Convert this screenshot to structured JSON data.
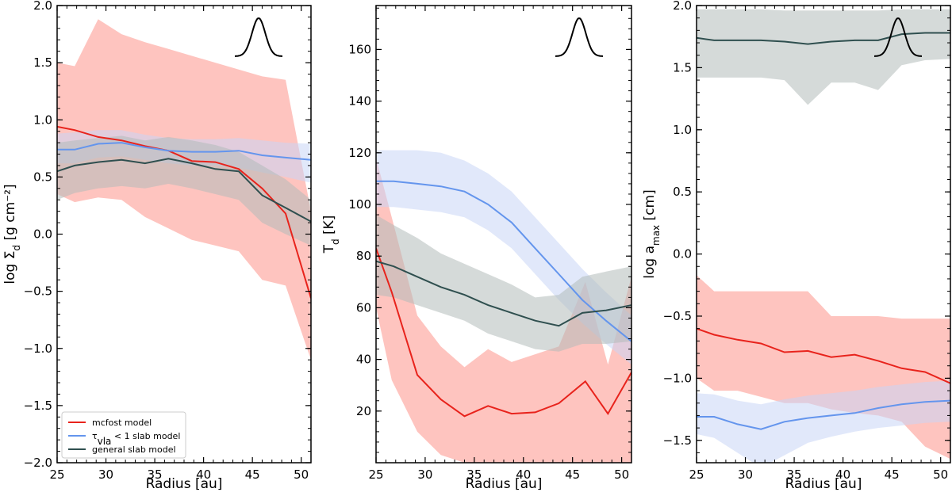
{
  "colors": {
    "mcfost": "#e8231c",
    "slab_thin": "#6495ed",
    "slab_general": "#2f4f4f",
    "mcfost_band": "#fdb0aa",
    "slab_thin_band": "#c8d6f5",
    "slab_general_band": "#b3bcba"
  },
  "legend": {
    "entries": [
      {
        "series": "mcfost",
        "label": "mcfost model"
      },
      {
        "series": "slab_thin",
        "label": "τ_vla < 1 slab model"
      },
      {
        "series": "slab_general",
        "label": "general slab model"
      }
    ],
    "placement": "lower-left of first panel"
  },
  "chart_data": [
    {
      "type": "line",
      "xlabel": "Radius [au]",
      "ylabel": "log Σ_d [g cm⁻²]",
      "xlim": [
        25,
        51
      ],
      "ylim": [
        -2.0,
        2.0
      ],
      "xticks": [
        25,
        30,
        35,
        40,
        45,
        50
      ],
      "yticks": [
        -2.0,
        -1.5,
        -1.0,
        -0.5,
        0.0,
        0.5,
        1.0,
        1.5,
        2.0
      ],
      "tick_labels_x": [
        "25",
        "30",
        "35",
        "40",
        "45",
        "50"
      ],
      "tick_labels_y": [
        "−2.0",
        "−1.5",
        "−1.0",
        "−0.5",
        "0.0",
        "0.5",
        "1.0",
        "1.5",
        "2.0"
      ],
      "inset": "gaussian beam profile, top-right",
      "series": [
        {
          "key": "mcfost",
          "x": [
            25,
            26.8,
            29.2,
            31.6,
            34,
            36.4,
            38.8,
            41.2,
            43.6,
            46,
            48.4,
            51
          ],
          "y": [
            0.94,
            0.91,
            0.85,
            0.82,
            0.77,
            0.73,
            0.64,
            0.63,
            0.57,
            0.4,
            0.18,
            -0.56
          ],
          "lower": [
            0.35,
            0.28,
            0.32,
            0.3,
            0.15,
            0.05,
            -0.05,
            -0.1,
            -0.15,
            -0.4,
            -0.45,
            -1.1
          ],
          "upper": [
            1.5,
            1.47,
            1.88,
            1.75,
            1.68,
            1.62,
            1.56,
            1.5,
            1.44,
            1.38,
            1.35,
            0.2
          ]
        },
        {
          "key": "slab_thin",
          "x": [
            25,
            26.8,
            29.2,
            31.6,
            34,
            36.4,
            38.8,
            41.2,
            43.6,
            46,
            48.4,
            51
          ],
          "y": [
            0.74,
            0.74,
            0.79,
            0.8,
            0.76,
            0.73,
            0.72,
            0.72,
            0.73,
            0.69,
            0.67,
            0.65
          ],
          "lower": [
            0.62,
            0.62,
            0.67,
            0.68,
            0.65,
            0.62,
            0.6,
            0.6,
            0.58,
            0.54,
            0.5,
            0.45
          ],
          "upper": [
            0.88,
            0.89,
            0.91,
            0.91,
            0.87,
            0.84,
            0.83,
            0.83,
            0.84,
            0.82,
            0.8,
            0.79
          ]
        },
        {
          "key": "slab_general",
          "x": [
            25,
            26.8,
            29.2,
            31.6,
            34,
            36.4,
            38.8,
            41.2,
            43.6,
            46,
            48.4,
            51
          ],
          "y": [
            0.55,
            0.6,
            0.63,
            0.65,
            0.62,
            0.66,
            0.62,
            0.57,
            0.55,
            0.34,
            0.23,
            0.11
          ],
          "lower": [
            0.3,
            0.36,
            0.4,
            0.42,
            0.4,
            0.44,
            0.4,
            0.35,
            0.3,
            0.1,
            0.0,
            -0.1
          ],
          "upper": [
            0.8,
            0.82,
            0.84,
            0.86,
            0.82,
            0.85,
            0.82,
            0.78,
            0.72,
            0.6,
            0.48,
            0.3
          ]
        }
      ]
    },
    {
      "type": "line",
      "xlabel": "Radius [au]",
      "ylabel": "T_d [K]",
      "xlim": [
        25,
        51
      ],
      "ylim": [
        0,
        177
      ],
      "xticks": [
        25,
        30,
        35,
        40,
        45,
        50
      ],
      "yticks": [
        20,
        40,
        60,
        80,
        100,
        120,
        140,
        160
      ],
      "tick_labels_x": [
        "25",
        "30",
        "35",
        "40",
        "45",
        "50"
      ],
      "tick_labels_y": [
        "20",
        "40",
        "60",
        "80",
        "100",
        "120",
        "140",
        "160"
      ],
      "inset": "gaussian beam profile, top-right",
      "series": [
        {
          "key": "mcfost",
          "x": [
            25,
            26.6,
            29.2,
            31.6,
            34,
            36.4,
            38.8,
            41.2,
            43.6,
            46.3,
            48.6,
            51
          ],
          "y": [
            83,
            66,
            34,
            24.5,
            18,
            22,
            19,
            19.5,
            23,
            31.5,
            19,
            35
          ],
          "lower": [
            60,
            32,
            12,
            3,
            0,
            0,
            0,
            0,
            0,
            0,
            0,
            0
          ],
          "upper": [
            118,
            95,
            57,
            45,
            37,
            44,
            39,
            42,
            45,
            70,
            38,
            72
          ]
        },
        {
          "key": "slab_thin",
          "x": [
            25,
            26.8,
            29.2,
            31.6,
            34,
            36.4,
            38.8,
            41.2,
            43.6,
            46,
            48.4,
            51
          ],
          "y": [
            109,
            109,
            108,
            107,
            105,
            100,
            93,
            83,
            73,
            63,
            55,
            47
          ],
          "lower": [
            99,
            99,
            98,
            97,
            95,
            90,
            83,
            73,
            63,
            54,
            46,
            38
          ],
          "upper": [
            121,
            121,
            121,
            120,
            117,
            112,
            105,
            95,
            85,
            75,
            66,
            57
          ]
        },
        {
          "key": "slab_general",
          "x": [
            25,
            26.8,
            29.2,
            31.6,
            34,
            36.4,
            38.8,
            41.2,
            43.6,
            46,
            48.4,
            51
          ],
          "y": [
            78,
            76,
            72,
            68,
            65,
            61,
            58,
            55,
            53,
            58,
            59,
            61
          ],
          "lower": [
            65,
            64,
            61,
            58,
            55,
            50,
            47,
            44,
            43,
            46,
            46,
            47
          ],
          "upper": [
            96,
            92,
            87,
            81,
            77,
            73,
            69,
            64,
            65,
            72,
            74,
            76
          ]
        }
      ]
    },
    {
      "type": "line",
      "xlabel": "Radius [au]",
      "ylabel": "log a_max [cm]",
      "xlim": [
        25,
        51
      ],
      "ylim": [
        -1.68,
        2.0
      ],
      "xticks": [
        25,
        30,
        35,
        40,
        45,
        50
      ],
      "yticks": [
        -1.5,
        -1.0,
        -0.5,
        0.0,
        0.5,
        1.0,
        1.5,
        2.0
      ],
      "tick_labels_x": [
        "25",
        "30",
        "35",
        "40",
        "45",
        "50"
      ],
      "tick_labels_y": [
        "−1.5",
        "−1.0",
        "−0.5",
        "0.0",
        "0.5",
        "1.0",
        "1.5",
        "2.0"
      ],
      "inset": "gaussian beam profile, top-right",
      "series": [
        {
          "key": "mcfost",
          "x": [
            25,
            26.8,
            29.2,
            31.6,
            34,
            36.4,
            38.8,
            41.2,
            43.6,
            46,
            48.4,
            51
          ],
          "y": [
            -0.6,
            -0.65,
            -0.69,
            -0.72,
            -0.79,
            -0.78,
            -0.83,
            -0.81,
            -0.86,
            -0.92,
            -0.95,
            -1.04
          ],
          "lower": [
            -1.0,
            -1.1,
            -1.1,
            -1.15,
            -1.2,
            -1.2,
            -1.25,
            -1.28,
            -1.3,
            -1.35,
            -1.55,
            -1.65
          ],
          "upper": [
            -0.17,
            -0.3,
            -0.3,
            -0.3,
            -0.3,
            -0.3,
            -0.5,
            -0.5,
            -0.5,
            -0.52,
            -0.52,
            -0.52
          ]
        },
        {
          "key": "slab_thin",
          "x": [
            25,
            26.8,
            29.2,
            31.6,
            34,
            36.4,
            38.8,
            41.2,
            43.6,
            46,
            48.4,
            51
          ],
          "y": [
            -1.31,
            -1.31,
            -1.37,
            -1.41,
            -1.35,
            -1.32,
            -1.3,
            -1.28,
            -1.24,
            -1.21,
            -1.19,
            -1.18
          ],
          "lower": [
            -1.45,
            -1.48,
            -1.6,
            -1.72,
            -1.62,
            -1.52,
            -1.47,
            -1.43,
            -1.4,
            -1.38,
            -1.36,
            -1.35
          ],
          "upper": [
            -1.12,
            -1.13,
            -1.18,
            -1.21,
            -1.17,
            -1.14,
            -1.12,
            -1.1,
            -1.07,
            -1.05,
            -1.03,
            -1.02
          ]
        },
        {
          "key": "slab_general",
          "x": [
            25,
            26.8,
            29.2,
            31.6,
            34,
            36.4,
            38.8,
            41.2,
            43.6,
            46,
            48.4,
            51
          ],
          "y": [
            1.74,
            1.72,
            1.72,
            1.72,
            1.71,
            1.69,
            1.71,
            1.72,
            1.72,
            1.77,
            1.78,
            1.78
          ],
          "lower": [
            1.42,
            1.42,
            1.42,
            1.42,
            1.4,
            1.2,
            1.38,
            1.38,
            1.32,
            1.52,
            1.56,
            1.57
          ],
          "upper": [
            1.97,
            1.97,
            1.97,
            1.97,
            1.96,
            1.96,
            1.96,
            1.96,
            1.96,
            1.97,
            1.97,
            1.97
          ]
        }
      ]
    }
  ]
}
